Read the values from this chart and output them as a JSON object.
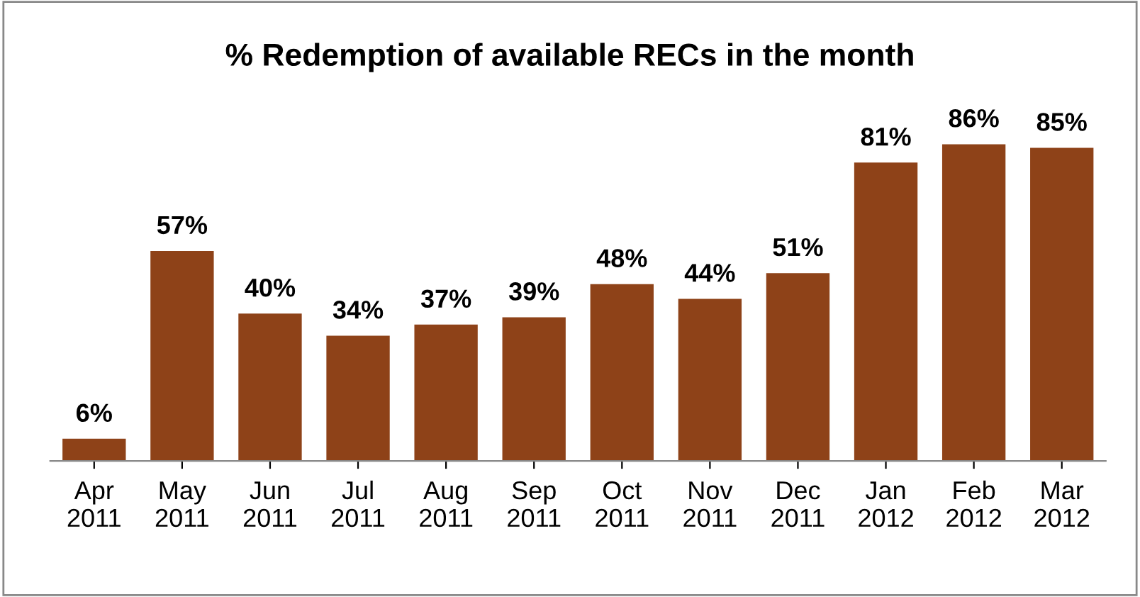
{
  "chart_data": {
    "type": "bar",
    "title": "% Redemption of available RECs in the month",
    "categories": [
      "Apr\n2011",
      "May\n2011",
      "Jun\n2011",
      "Jul\n2011",
      "Aug\n2011",
      "Sep\n2011",
      "Oct\n2011",
      "Nov\n2011",
      "Dec\n2011",
      "Jan\n2012",
      "Feb\n2012",
      "Mar\n2012"
    ],
    "values": [
      6,
      57,
      40,
      34,
      37,
      39,
      48,
      44,
      51,
      81,
      86,
      85
    ],
    "value_labels": [
      "6%",
      "57%",
      "40%",
      "34%",
      "37%",
      "39%",
      "48%",
      "44%",
      "51%",
      "81%",
      "86%",
      "85%"
    ],
    "color": "#8e4218",
    "grid": false,
    "legend": false
  }
}
